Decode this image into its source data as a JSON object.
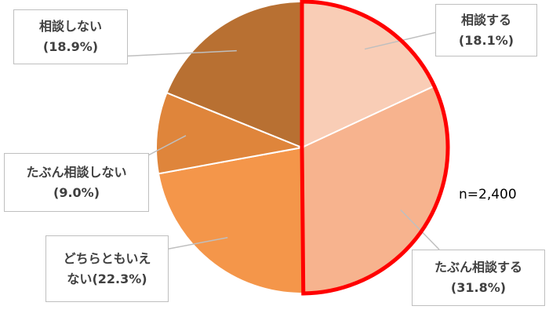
{
  "chart_data": {
    "type": "pie",
    "categories": [
      "相談する",
      "たぶん相談する",
      "どちらともいえない",
      "たぶん相談しない",
      "相談しない"
    ],
    "values": [
      18.1,
      31.8,
      22.3,
      9.0,
      18.9
    ],
    "value_labels": [
      "(18.1%)",
      "(31.8%)",
      "(22.3%)",
      "(9.0%)",
      "(18.9%)"
    ],
    "colors": [
      "#f9cdb6",
      "#f7b38e",
      "#f4964a",
      "#df853b",
      "#b87032"
    ],
    "annotation": "n=2,400"
  }
}
